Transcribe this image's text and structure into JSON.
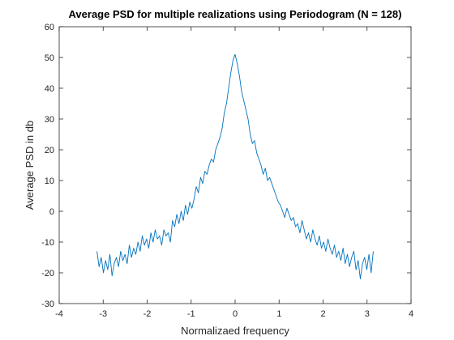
{
  "chart_data": {
    "type": "line",
    "title": "Average PSD for multiple realizations using Periodogram (N = 128)",
    "xlabel": "Normalizaed frequency",
    "ylabel": "Average PSD in db",
    "xlim": [
      -4,
      4
    ],
    "ylim": [
      -30,
      60
    ],
    "xticks": [
      -4,
      -3,
      -2,
      -1,
      0,
      1,
      2,
      3,
      4
    ],
    "yticks": [
      -30,
      -20,
      -10,
      0,
      10,
      20,
      30,
      40,
      50,
      60
    ],
    "xtick_labels": [
      "-4",
      "-3",
      "-2",
      "-1",
      "0",
      "1",
      "2",
      "3",
      "4"
    ],
    "ytick_labels": [
      "-30",
      "-20",
      "-10",
      "0",
      "10",
      "20",
      "30",
      "40",
      "50",
      "60"
    ],
    "grid": false,
    "legend": "none",
    "series": [
      {
        "color": "#0072bd",
        "x": [
          -3.1416,
          -3.0925,
          -3.0434,
          -2.9943,
          -2.9452,
          -2.8962,
          -2.8471,
          -2.798,
          -2.7489,
          -2.6998,
          -2.6507,
          -2.6016,
          -2.5525,
          -2.5035,
          -2.4544,
          -2.4053,
          -2.3562,
          -2.3071,
          -2.258,
          -2.2089,
          -2.1598,
          -2.1108,
          -2.0617,
          -2.0126,
          -1.9635,
          -1.9144,
          -1.8653,
          -1.8162,
          -1.7671,
          -1.7181,
          -1.669,
          -1.6199,
          -1.5708,
          -1.5217,
          -1.4726,
          -1.4235,
          -1.3744,
          -1.3254,
          -1.2763,
          -1.2272,
          -1.1781,
          -1.129,
          -1.0799,
          -1.0308,
          -0.9817,
          -0.9327,
          -0.8836,
          -0.8345,
          -0.7854,
          -0.7363,
          -0.6872,
          -0.6381,
          -0.589,
          -0.54,
          -0.4909,
          -0.4418,
          -0.3927,
          -0.3436,
          -0.2945,
          -0.2454,
          -0.1963,
          -0.1473,
          -0.0982,
          -0.0491,
          0.0,
          0.0491,
          0.0982,
          0.1473,
          0.1963,
          0.2454,
          0.2945,
          0.3436,
          0.3927,
          0.4418,
          0.4909,
          0.54,
          0.589,
          0.6381,
          0.6872,
          0.7363,
          0.7854,
          0.8345,
          0.8836,
          0.9327,
          0.9817,
          1.0308,
          1.0799,
          1.129,
          1.1781,
          1.2272,
          1.2763,
          1.3254,
          1.3744,
          1.4235,
          1.4726,
          1.5217,
          1.5708,
          1.6199,
          1.669,
          1.7181,
          1.7671,
          1.8162,
          1.8653,
          1.9144,
          1.9635,
          2.0126,
          2.0617,
          2.1108,
          2.1598,
          2.2089,
          2.258,
          2.3071,
          2.3562,
          2.4053,
          2.4544,
          2.5035,
          2.5525,
          2.6016,
          2.6507,
          2.6998,
          2.7489,
          2.798,
          2.8471,
          2.8962,
          2.9452,
          2.9943,
          3.0434,
          3.0925,
          3.1416
        ],
        "y": [
          -13,
          -18,
          -15,
          -20,
          -16,
          -19,
          -14,
          -21,
          -17,
          -15,
          -18,
          -13,
          -16,
          -14,
          -17,
          -11,
          -15,
          -12,
          -14,
          -10,
          -13,
          -8,
          -11,
          -9,
          -12,
          -7,
          -10,
          -6,
          -9,
          -8,
          -11,
          -6,
          -8,
          -7,
          -10,
          -3,
          -5,
          -1,
          -4,
          0,
          -3,
          2,
          -1,
          3,
          1,
          4,
          8,
          6,
          11,
          9,
          13,
          12,
          15,
          17,
          16,
          20,
          22,
          24,
          27,
          32,
          35,
          40,
          45,
          49,
          51,
          48,
          44,
          39,
          36,
          33,
          30,
          25,
          22,
          23,
          19,
          17,
          15,
          12,
          14,
          10,
          11,
          9,
          7,
          5,
          3,
          2,
          0,
          -2,
          1,
          -1,
          -3,
          -2,
          -5,
          -4,
          -7,
          -3,
          -6,
          -9,
          -7,
          -10,
          -6,
          -9,
          -11,
          -8,
          -12,
          -10,
          -13,
          -9,
          -12,
          -14,
          -11,
          -15,
          -13,
          -16,
          -12,
          -17,
          -14,
          -18,
          -15,
          -13,
          -19,
          -16,
          -22,
          -17,
          -15,
          -19,
          -14,
          -20,
          -13
        ]
      }
    ]
  }
}
